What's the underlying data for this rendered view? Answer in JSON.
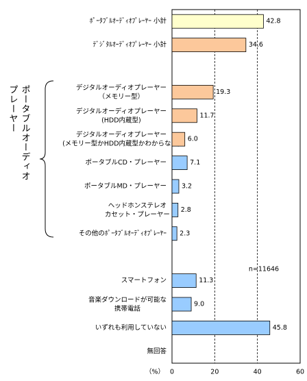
{
  "chart_data": {
    "type": "bar",
    "orientation": "horizontal",
    "categories": [
      "ﾎﾟｰﾀﾌﾞﾙｵｰﾃﾞｨｵﾌﾟﾚｰﾔｰ 小計",
      "ﾃﾞｼﾞﾀﾙｵｰﾃﾞｨｵﾌﾟﾚｰﾔｰ 小計",
      null,
      "デジタルオーディオプレーヤー\n（メモリー型）",
      "デジタルオーディオプレーヤー\n(HDD内蔵型)",
      "デジタルオーディオプレーヤー\n(メモリー型かHDD内蔵型かわからない)",
      "ポータブルCD・プレーヤー",
      "ポータブルMD・プレーヤー",
      "ヘッドホンステレオ\nカセット・プレーヤー",
      "その他のﾎﾟｰﾀﾌﾞﾙｵｰﾃﾞｨｵﾌﾟﾚｰﾔｰ",
      null,
      "スマートフォン",
      "音楽ダウンロードが可能な\n携帯電話",
      "いずれも利用していない",
      "無回答"
    ],
    "values": [
      42.8,
      34.6,
      null,
      19.3,
      11.7,
      6.0,
      7.1,
      3.2,
      2.8,
      2.3,
      null,
      11.3,
      9.0,
      45.8,
      null
    ],
    "value_labels": [
      "42.8",
      "34.6",
      null,
      "19.3",
      "11.7",
      "6.0",
      "7.1",
      "3.2",
      "2.8",
      "2.3",
      null,
      "11.3",
      "9.0",
      "45.8",
      null
    ],
    "colors": [
      "#ffffcc",
      "#fcc89b",
      null,
      "#fcc89b",
      "#fcc89b",
      "#fcc89b",
      "#99ccff",
      "#99ccff",
      "#99ccff",
      "#99ccff",
      null,
      "#99ccff",
      "#99ccff",
      "#99ccff",
      null
    ],
    "xlim": [
      0,
      60
    ],
    "xticks": [
      0,
      20,
      40,
      60
    ],
    "grid": true,
    "x_unit": "（%）",
    "annotation": "n=11646",
    "group_label": [
      "ポータブルオーディオ",
      "プレーヤー"
    ]
  }
}
